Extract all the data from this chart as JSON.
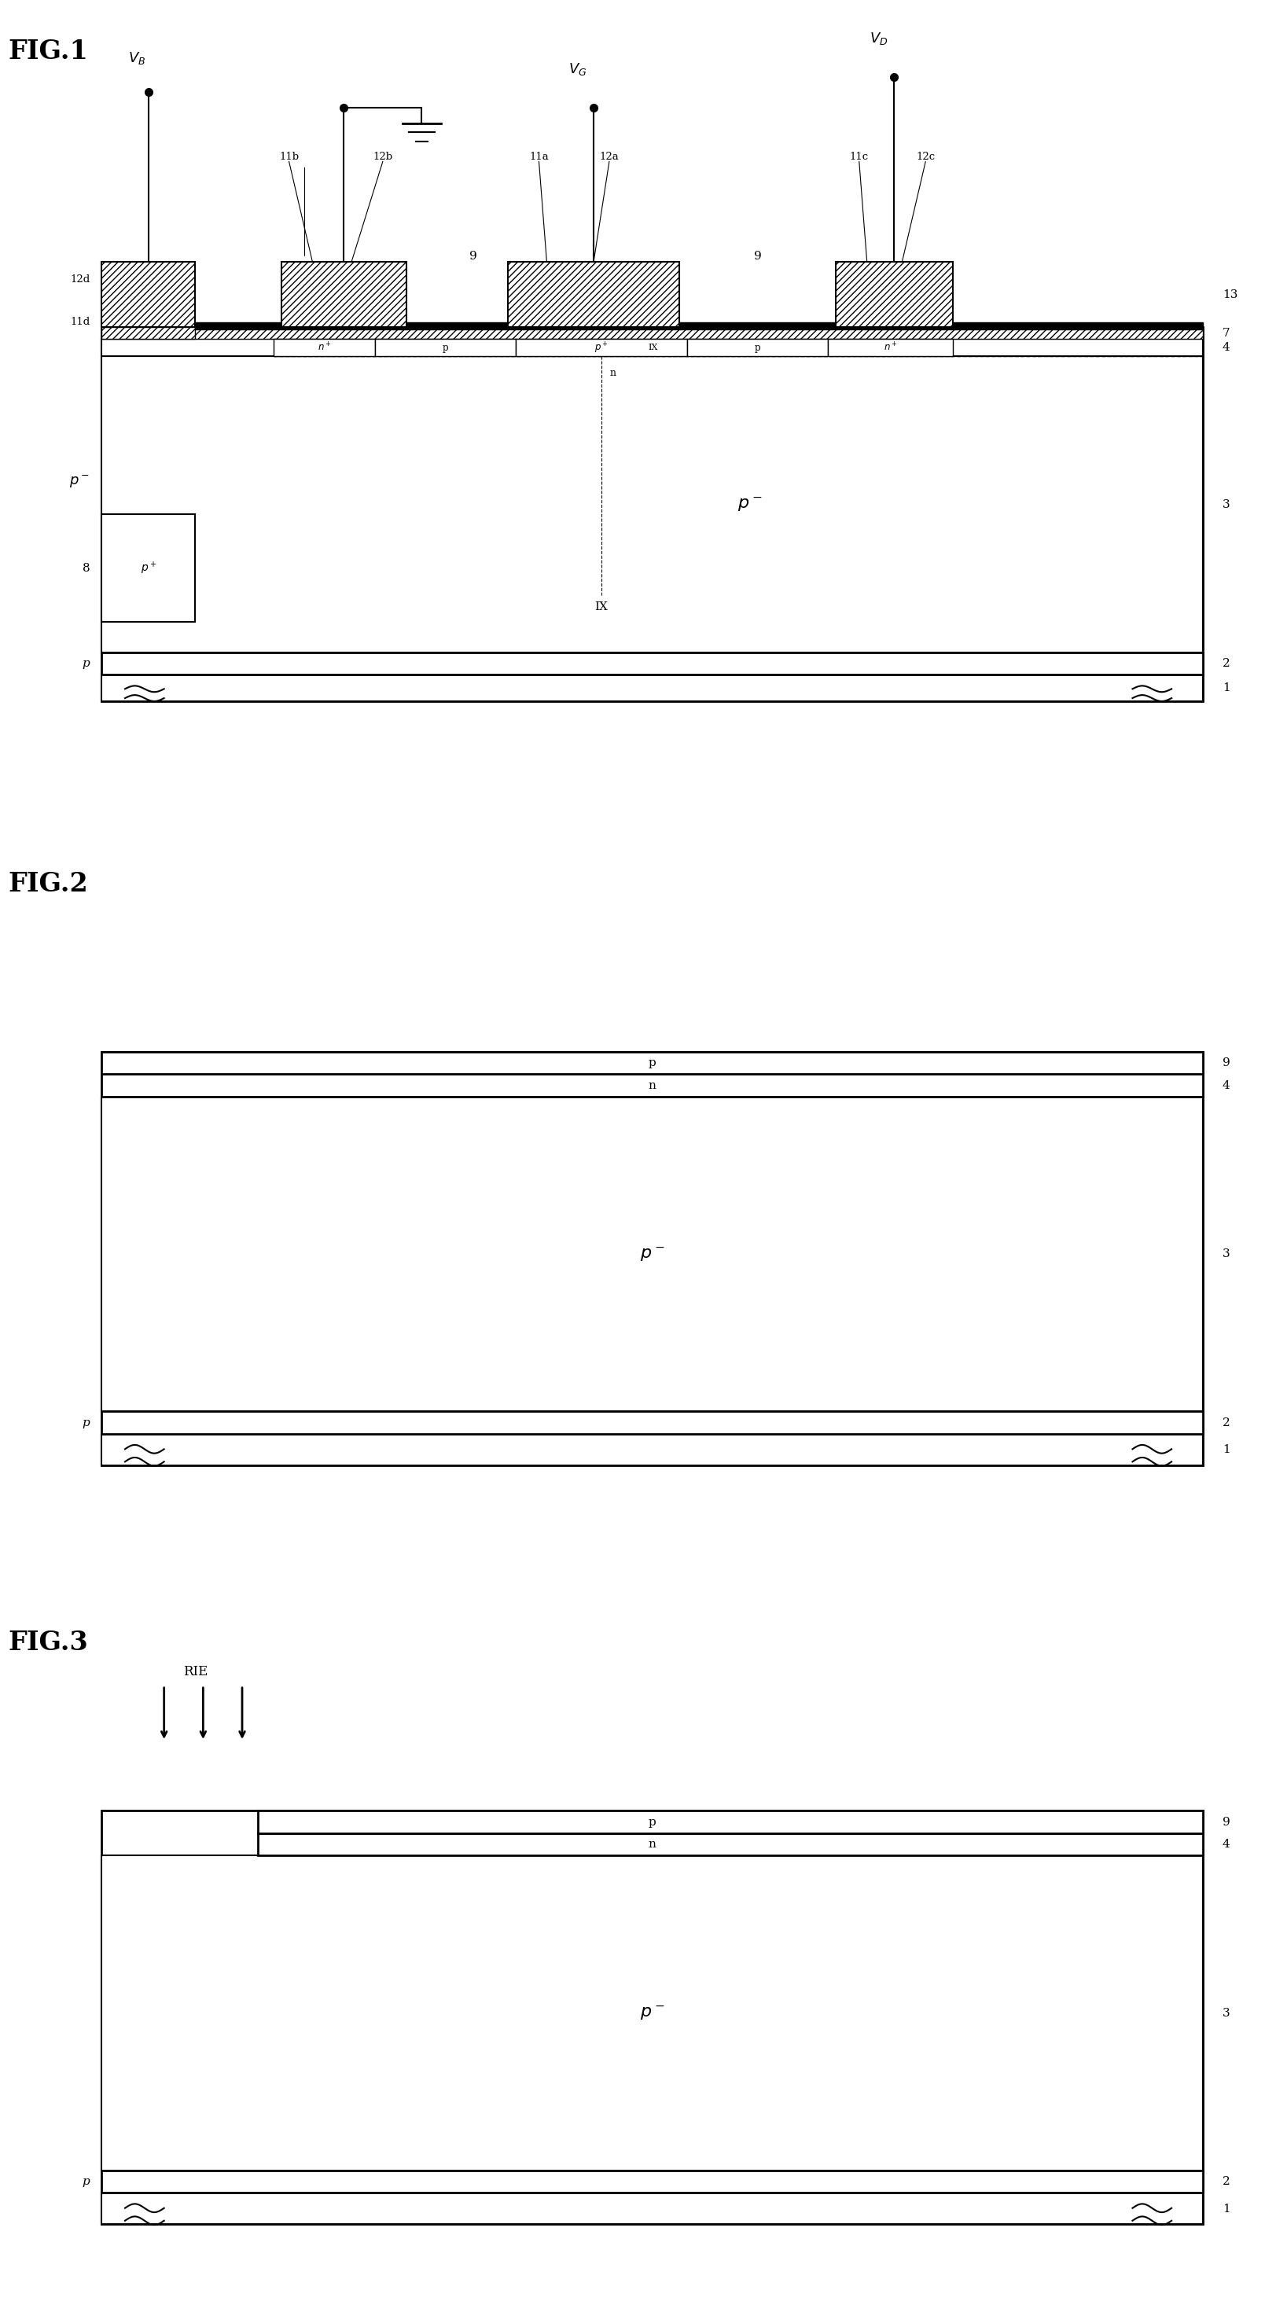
{
  "fig_width": 17.66,
  "fig_height": 30.17,
  "bg_color": "#ffffff",
  "fig1_label": "FIG.1",
  "fig2_label": "FIG.2",
  "fig3_label": "FIG.3"
}
